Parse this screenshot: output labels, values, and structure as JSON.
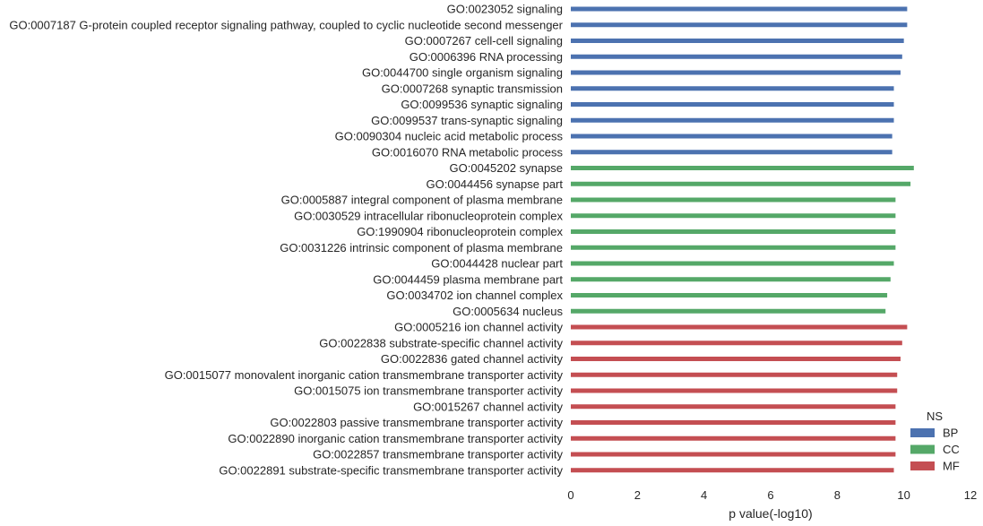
{
  "chart_data": {
    "type": "bar",
    "orientation": "horizontal",
    "categories": [
      "GO:0023052 signaling",
      "GO:0007187 G-protein coupled receptor signaling pathway, coupled to cyclic nucleotide second messenger",
      "GO:0007267 cell-cell signaling",
      "GO:0006396 RNA processing",
      "GO:0044700 single organism signaling",
      "GO:0007268 synaptic transmission",
      "GO:0099536 synaptic signaling",
      "GO:0099537 trans-synaptic signaling",
      "GO:0090304 nucleic acid metabolic process",
      "GO:0016070 RNA metabolic process",
      "GO:0045202 synapse",
      "GO:0044456 synapse part",
      "GO:0005887 integral component of plasma membrane",
      "GO:0030529 intracellular ribonucleoprotein complex",
      "GO:1990904 ribonucleoprotein complex",
      "GO:0031226 intrinsic component of plasma membrane",
      "GO:0044428 nuclear part",
      "GO:0044459 plasma membrane part",
      "GO:0034702 ion channel complex",
      "GO:0005634 nucleus",
      "GO:0005216 ion channel activity",
      "GO:0022838 substrate-specific channel activity",
      "GO:0022836 gated channel activity",
      "GO:0015077 monovalent inorganic cation transmembrane transporter activity",
      "GO:0015075 ion transmembrane transporter activity",
      "GO:0015267 channel activity",
      "GO:0022803 passive transmembrane transporter activity",
      "GO:0022890 inorganic cation transmembrane transporter activity",
      "GO:0022857 transmembrane transporter activity",
      "GO:0022891 substrate-specific transmembrane transporter activity"
    ],
    "values": [
      10.1,
      10.1,
      10.0,
      9.95,
      9.9,
      9.7,
      9.7,
      9.7,
      9.65,
      9.65,
      10.3,
      10.2,
      9.75,
      9.75,
      9.75,
      9.75,
      9.7,
      9.6,
      9.5,
      9.45,
      10.1,
      9.95,
      9.9,
      9.8,
      9.8,
      9.75,
      9.75,
      9.75,
      9.75,
      9.7
    ],
    "groups": [
      "BP",
      "BP",
      "BP",
      "BP",
      "BP",
      "BP",
      "BP",
      "BP",
      "BP",
      "BP",
      "CC",
      "CC",
      "CC",
      "CC",
      "CC",
      "CC",
      "CC",
      "CC",
      "CC",
      "CC",
      "MF",
      "MF",
      "MF",
      "MF",
      "MF",
      "MF",
      "MF",
      "MF",
      "MF",
      "MF"
    ],
    "xlabel": "p value(-log10)",
    "ylabel": "",
    "title": "",
    "xlim": [
      0,
      12
    ],
    "xticks": [
      "0",
      "2",
      "4",
      "6",
      "8",
      "10",
      "12"
    ],
    "legend": {
      "title": "NS",
      "placement": "bottom-right",
      "entries": [
        {
          "name": "BP",
          "color": "#4c72b0"
        },
        {
          "name": "CC",
          "color": "#55a868"
        },
        {
          "name": "MF",
          "color": "#c44e52"
        }
      ]
    },
    "grid": false
  }
}
